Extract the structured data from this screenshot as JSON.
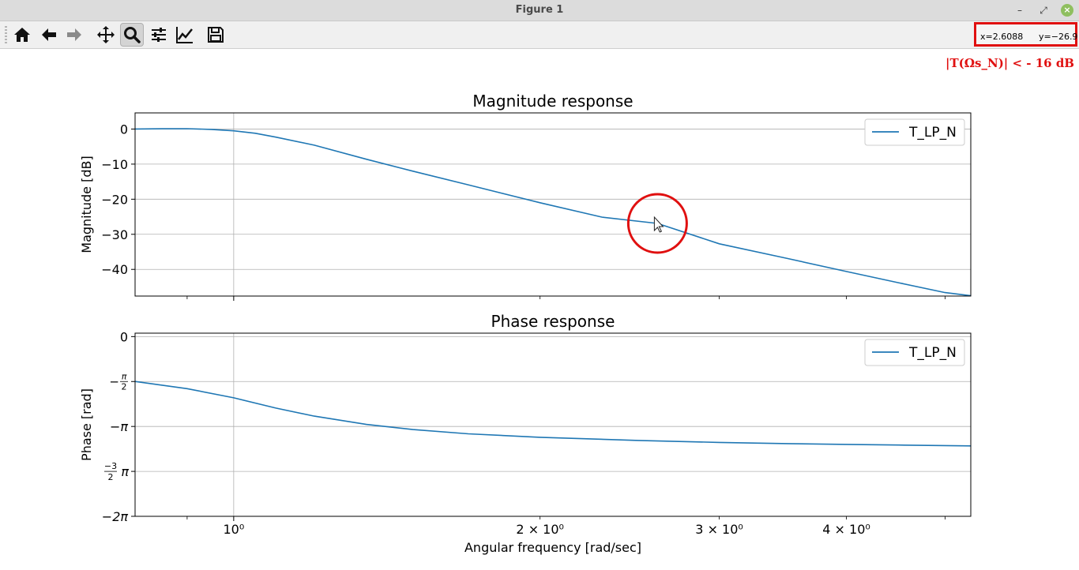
{
  "window": {
    "title": "Figure 1",
    "controls": {
      "minimize": "–",
      "maximize": "⤢",
      "close": "×"
    }
  },
  "toolbar": {
    "buttons": [
      {
        "name": "home",
        "icon": "home-icon"
      },
      {
        "name": "back",
        "icon": "arrow-left-icon"
      },
      {
        "name": "forward",
        "icon": "arrow-right-icon"
      },
      {
        "name": "pan",
        "icon": "move-icon"
      },
      {
        "name": "zoom",
        "icon": "magnifier-icon",
        "active": true
      },
      {
        "name": "configure-subplots",
        "icon": "sliders-icon"
      },
      {
        "name": "edit-axis",
        "icon": "line-chart-icon"
      },
      {
        "name": "save",
        "icon": "floppy-disk-icon"
      }
    ],
    "coords": {
      "x": "x=2.6088",
      "y": "y=−26.9"
    }
  },
  "annotation": "|T(Ωs_N)| < - 16 dB",
  "colors": {
    "line": "#1f77b4",
    "grid": "#b0b0b0",
    "highlight": "#e01010"
  },
  "chart_data": [
    {
      "type": "line",
      "title": "Magnitude response",
      "ylabel": "Magnitude [dB]",
      "xscale": "log",
      "xlim": [
        0.8,
        5.3
      ],
      "ylim": [
        -47.6,
        4.6
      ],
      "yticks": [
        0,
        -10,
        -20,
        -30,
        -40
      ],
      "ytick_labels": [
        "0",
        "−10",
        "−20",
        "−30",
        "−40"
      ],
      "grid": true,
      "legend": "top-right",
      "series": [
        {
          "name": "T_LP_N",
          "x": [
            0.8,
            0.85,
            0.9,
            0.95,
            1.0,
            1.05,
            1.1,
            1.2,
            1.35,
            1.5,
            1.7,
            2.0,
            2.3,
            2.6088,
            3.0,
            3.5,
            4.0,
            4.5,
            5.0,
            5.3
          ],
          "y": [
            0.0,
            0.08,
            0.09,
            -0.1,
            -0.5,
            -1.2,
            -2.3,
            -4.6,
            -8.6,
            -12.0,
            -15.9,
            -21.0,
            -25.1,
            -26.9,
            -32.7,
            -36.9,
            -40.6,
            -43.8,
            -46.6,
            -47.5
          ]
        }
      ]
    },
    {
      "type": "line",
      "title": "Phase response",
      "xlabel": "Angular frequency [rad/sec]",
      "ylabel": "Phase [rad]",
      "xscale": "log",
      "xlim": [
        0.8,
        5.3
      ],
      "ylim": [
        -6.283,
        0.12
      ],
      "yticks": [
        0,
        -1.5708,
        -3.1416,
        -4.7124,
        -6.2832
      ],
      "ytick_labels": [
        "0",
        "−π/2",
        "−π",
        "−3/2 π",
        "−2π"
      ],
      "xticks": [
        1,
        2,
        3,
        4
      ],
      "xtick_labels": [
        "10⁰",
        "2 × 10⁰",
        "3 × 10⁰",
        "4 × 10⁰"
      ],
      "grid": true,
      "legend": "top-right",
      "series": [
        {
          "name": "T_LP_N",
          "x": [
            0.8,
            0.9,
            1.0,
            1.1,
            1.2,
            1.35,
            1.5,
            1.7,
            2.0,
            2.5,
            3.0,
            3.5,
            4.0,
            4.5,
            5.0,
            5.3
          ],
          "y": [
            -1.57,
            -1.82,
            -2.14,
            -2.5,
            -2.78,
            -3.07,
            -3.25,
            -3.4,
            -3.52,
            -3.63,
            -3.7,
            -3.74,
            -3.77,
            -3.79,
            -3.81,
            -3.82
          ]
        }
      ]
    }
  ]
}
